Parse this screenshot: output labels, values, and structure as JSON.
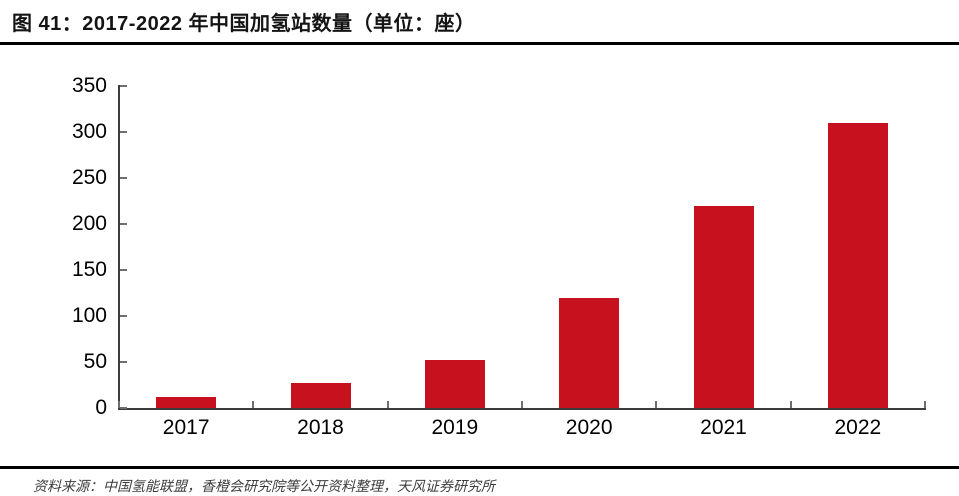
{
  "figure": {
    "label_title": "图 41：2017-2022 年中国加氢站数量（单位：座）",
    "source_note": "资料来源：中国氢能联盟，香橙会研究院等公开资料整理，天风证券研究所"
  },
  "chart_data": {
    "type": "bar",
    "title": "2017-2022 年中国加氢站数量（单位：座）",
    "categories": [
      "2017",
      "2018",
      "2019",
      "2020",
      "2021",
      "2022"
    ],
    "values": [
      12,
      27,
      52,
      120,
      220,
      310
    ],
    "xlabel": "",
    "ylabel": "",
    "ylim": [
      0,
      350
    ],
    "yticks": [
      0,
      50,
      100,
      150,
      200,
      250,
      300,
      350
    ],
    "grid": false,
    "legend": "none",
    "bar_color": "#c8111e"
  },
  "colors": {
    "bar": "#c8111e",
    "axis": "#3c3c3c",
    "tick": "#6e6e6e",
    "rule": "#000000",
    "title_text": "#141414",
    "source_text": "#3d3d3d",
    "background": "#ffffff"
  }
}
